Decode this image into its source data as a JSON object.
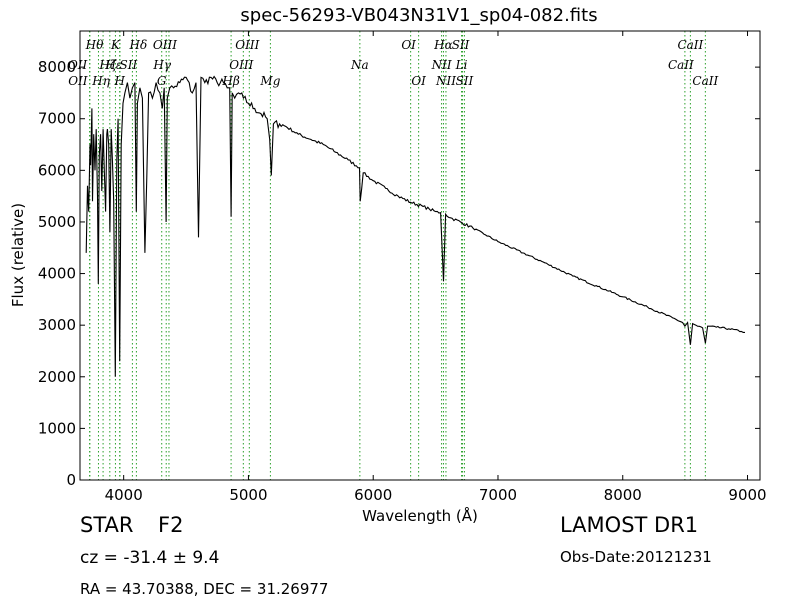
{
  "header": {
    "title": "spec-56293-VB043N31V1_sp04-082.fits"
  },
  "info": {
    "object_class": "STAR",
    "subclass": "F2",
    "survey": "LAMOST DR1",
    "redshift": "cz = -31.4 ± 9.4",
    "obs_date": "Obs-Date:20121231",
    "coords": "RA = 43.70388, DEC = 31.26977"
  },
  "chart_data": {
    "type": "line",
    "title": "spec-56293-VB043N31V1_sp04-082.fits",
    "xlabel": "Wavelength (Å)",
    "ylabel": "Flux (relative)",
    "xlim": [
      3650,
      9100
    ],
    "ylim": [
      0,
      8700
    ],
    "xticks": [
      4000,
      5000,
      6000,
      7000,
      8000,
      9000
    ],
    "yticks": [
      0,
      1000,
      2000,
      3000,
      4000,
      5000,
      6000,
      7000,
      8000
    ],
    "grid": false,
    "line_color": "#000000",
    "marker_color": "#2ca02c",
    "series": [
      {
        "x": [
          3700,
          3710,
          3720,
          3730,
          3735,
          3745,
          3750,
          3760,
          3770,
          3780,
          3790,
          3797,
          3805,
          3815,
          3825,
          3835,
          3845,
          3855,
          3865,
          3870,
          3880,
          3890,
          3900,
          3910,
          3920,
          3933,
          3945,
          3955,
          3968,
          3980,
          3995,
          4010,
          4030,
          4050,
          4070,
          4090,
          4101,
          4110,
          4130,
          4150,
          4170,
          4200,
          4230,
          4260,
          4290,
          4310,
          4325,
          4340,
          4350,
          4370,
          4400,
          4450,
          4500,
          4550,
          4580,
          4600,
          4620,
          4650,
          4700,
          4750,
          4800,
          4830,
          4850,
          4861,
          4870,
          4890,
          4920,
          4960,
          5000,
          5050,
          5100,
          5150,
          5170,
          5183,
          5200,
          5250,
          5300,
          5400,
          5500,
          5600,
          5700,
          5800,
          5890,
          5896,
          5920,
          6000,
          6100,
          6200,
          6300,
          6400,
          6450,
          6500,
          6540,
          6563,
          6580,
          6620,
          6700,
          6800,
          6900,
          7000,
          7200,
          7400,
          7600,
          7800,
          8000,
          8200,
          8400,
          8480,
          8498,
          8520,
          8542,
          8560,
          8600,
          8640,
          8662,
          8680,
          8750,
          8850,
          8950,
          8980
        ],
        "y": [
          4400,
          5700,
          5200,
          6500,
          6100,
          7200,
          5400,
          6700,
          6000,
          6800,
          5500,
          3800,
          6300,
          6700,
          5600,
          6800,
          6000,
          5200,
          6700,
          6800,
          6500,
          4800,
          6800,
          6200,
          5400,
          2000,
          6200,
          7000,
          2300,
          6500,
          7300,
          7500,
          7700,
          7400,
          7600,
          7700,
          5200,
          7300,
          7600,
          7400,
          4400,
          7500,
          7400,
          7700,
          7500,
          7200,
          7600,
          5000,
          7400,
          7600,
          7600,
          7700,
          7800,
          7500,
          7700,
          4700,
          7800,
          7700,
          7800,
          7700,
          7700,
          7600,
          7600,
          5100,
          7500,
          7400,
          7500,
          7400,
          7300,
          7200,
          7100,
          7000,
          6600,
          5900,
          6900,
          6900,
          6850,
          6700,
          6600,
          6500,
          6350,
          6200,
          6050,
          5400,
          5950,
          5800,
          5650,
          5500,
          5380,
          5300,
          5250,
          5200,
          5180,
          3850,
          5150,
          5080,
          5000,
          4880,
          4750,
          4620,
          4400,
          4180,
          3950,
          3750,
          3550,
          3350,
          3140,
          3050,
          2980,
          3050,
          2620,
          3030,
          2980,
          2950,
          2650,
          2980,
          2960,
          2930,
          2880,
          2860
        ]
      }
    ],
    "spectral_lines": [
      {
        "name": "O II",
        "label": "OII",
        "wavelength": 3727,
        "row": 2,
        "dx": -12
      },
      {
        "name": "O II",
        "label": "OII",
        "wavelength": 3729,
        "row": 3,
        "dx": -12
      },
      {
        "name": "H theta",
        "label": "Hθ",
        "wavelength": 3798,
        "row": 1,
        "dx": -4
      },
      {
        "name": "H eta",
        "label": "Hη",
        "wavelength": 3835,
        "row": 3,
        "dx": -2
      },
      {
        "name": "H zeta",
        "label": "Hζ",
        "wavelength": 3889,
        "row": 2,
        "dx": -2
      },
      {
        "name": "K",
        "label": "K",
        "wavelength": 3934,
        "row": 1,
        "dx": 0
      },
      {
        "name": "H epsilon",
        "label": "Hε",
        "wavelength": 3970,
        "row": 2,
        "dx": -6
      },
      {
        "name": "H",
        "label": "H",
        "wavelength": 3968,
        "row": 3,
        "dx": 0
      },
      {
        "name": "S II",
        "label": "SII",
        "wavelength": 4070,
        "row": 2,
        "dx": -4
      },
      {
        "name": "H delta",
        "label": "Hδ",
        "wavelength": 4102,
        "row": 1,
        "dx": 2
      },
      {
        "name": "G",
        "label": "G",
        "wavelength": 4305,
        "row": 3,
        "dx": 0
      },
      {
        "name": "H gamma",
        "label": "Hγ",
        "wavelength": 4341,
        "row": 2,
        "dx": -4
      },
      {
        "name": "O III",
        "label": "OIII",
        "wavelength": 4363,
        "row": 1,
        "dx": -4
      },
      {
        "name": "H beta",
        "label": "Hβ",
        "wavelength": 4861,
        "row": 3,
        "dx": 0
      },
      {
        "name": "O III",
        "label": "OIII",
        "wavelength": 4959,
        "row": 2,
        "dx": -2
      },
      {
        "name": "O III",
        "label": "OIII",
        "wavelength": 5007,
        "row": 1,
        "dx": -2
      },
      {
        "name": "Mg",
        "label": "Mg",
        "wavelength": 5176,
        "row": 3,
        "dx": 0
      },
      {
        "name": "Na",
        "label": "Na",
        "wavelength": 5893,
        "row": 2,
        "dx": 0
      },
      {
        "name": "O I",
        "label": "OI",
        "wavelength": 6300,
        "row": 1,
        "dx": -2
      },
      {
        "name": "O I",
        "label": "OI",
        "wavelength": 6364,
        "row": 3,
        "dx": 0
      },
      {
        "name": "N II",
        "label": "NII",
        "wavelength": 6548,
        "row": 2,
        "dx": 0
      },
      {
        "name": "H alpha",
        "label": "Hα",
        "wavelength": 6563,
        "row": 1,
        "dx": 0
      },
      {
        "name": "N II",
        "label": "NII",
        "wavelength": 6583,
        "row": 3,
        "dx": 0
      },
      {
        "name": "Li",
        "label": "Li",
        "wavelength": 6708,
        "row": 2,
        "dx": 0
      },
      {
        "name": "S II",
        "label": "SII",
        "wavelength": 6716,
        "row": 1,
        "dx": -2
      },
      {
        "name": "S II",
        "label": "SII",
        "wavelength": 6731,
        "row": 3,
        "dx": 0
      },
      {
        "name": "Ca II",
        "label": "CaII",
        "wavelength": 8498,
        "row": 2,
        "dx": -4
      },
      {
        "name": "Ca II",
        "label": "CaII",
        "wavelength": 8542,
        "row": 1,
        "dx": 0
      },
      {
        "name": "Ca II",
        "label": "CaII",
        "wavelength": 8662,
        "row": 3,
        "dx": 0
      }
    ]
  }
}
